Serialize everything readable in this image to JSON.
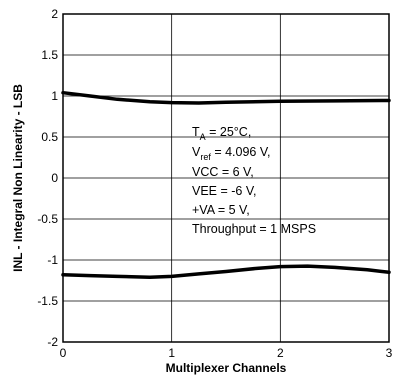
{
  "chart_data": {
    "type": "line",
    "xlabel": "Multiplexer Channels",
    "ylabel": "INL - Integral Non Linearity - LSB",
    "xlim": [
      0,
      3
    ],
    "ylim": [
      -2,
      2
    ],
    "x_ticks": [
      "0",
      "1",
      "2",
      "3"
    ],
    "y_ticks": [
      "-2",
      "-1.5",
      "-1",
      "-0.5",
      "0",
      "0.5",
      "1",
      "1.5",
      "2"
    ],
    "grid": true,
    "series": [
      {
        "x": [
          0,
          0.25,
          0.5,
          0.8,
          1.0,
          1.25,
          1.5,
          2.0,
          2.5,
          3.0
        ],
        "y": [
          1.04,
          1.0,
          0.96,
          0.93,
          0.92,
          0.915,
          0.925,
          0.935,
          0.94,
          0.945
        ]
      },
      {
        "x": [
          0,
          0.25,
          0.5,
          0.8,
          1.0,
          1.25,
          1.5,
          1.8,
          2.0,
          2.25,
          2.5,
          2.8,
          3.0
        ],
        "y": [
          -1.18,
          -1.19,
          -1.2,
          -1.21,
          -1.2,
          -1.17,
          -1.14,
          -1.1,
          -1.08,
          -1.075,
          -1.09,
          -1.12,
          -1.15
        ]
      }
    ],
    "annotation": {
      "t_main": "T",
      "t_sub": "A",
      "t_rest": " = 25°C,",
      "v_main": "V",
      "v_sub": "ref",
      "v_rest": " = 4.096 V,",
      "lines": [
        "VCC = 6 V,",
        "VEE = -6 V,",
        "+VA = 5 V,",
        "Throughput = 1 MSPS"
      ]
    },
    "series_color": "#000000"
  }
}
